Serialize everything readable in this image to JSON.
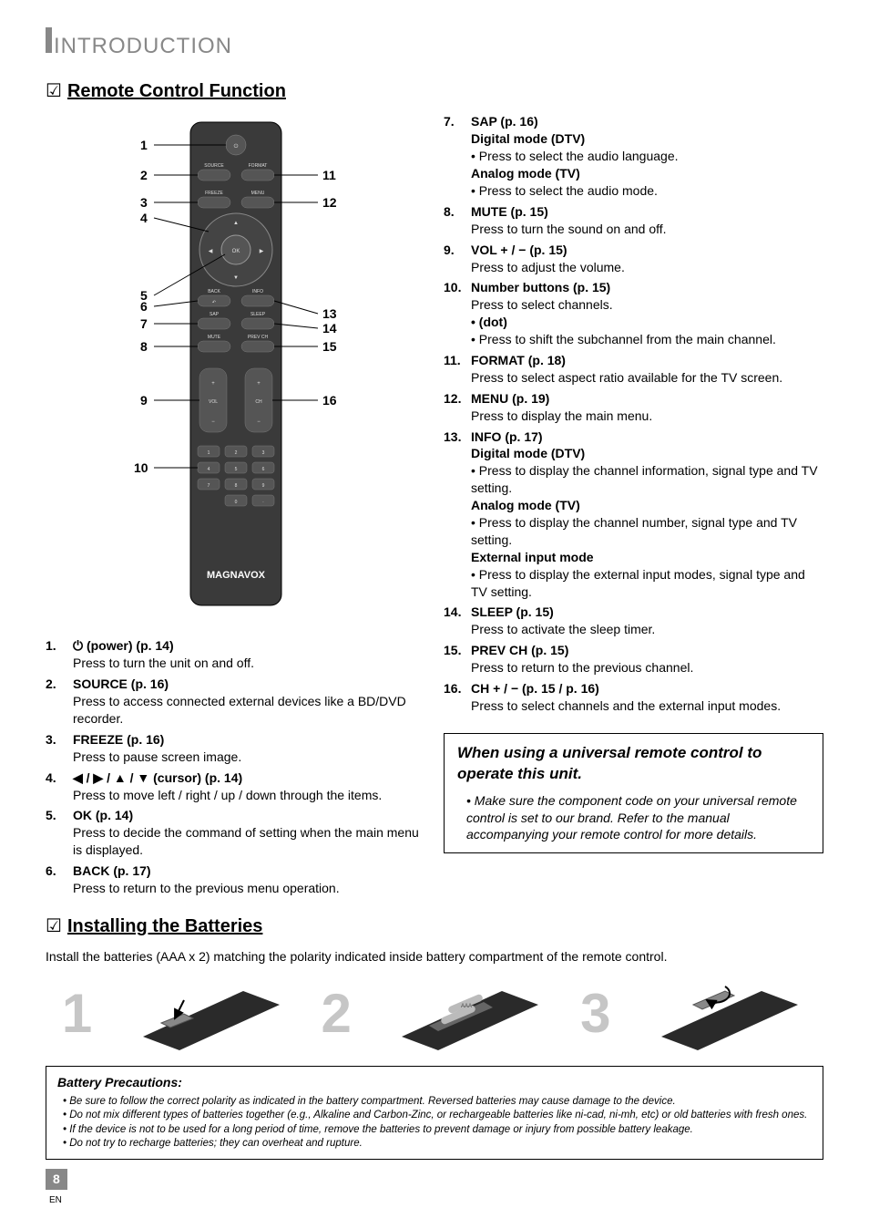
{
  "header": {
    "title_first_char": "I",
    "title_rest": "NTRODUCTION"
  },
  "section_remote": {
    "check": "☑",
    "title": "Remote Control Function"
  },
  "remote_labels": {
    "source": "SOURCE",
    "format": "FORMAT",
    "freeze": "FREEZE",
    "menu": "MENU",
    "ok": "OK",
    "back": "BACK",
    "info": "INFO",
    "sap": "SAP",
    "sleep": "SLEEP",
    "mute": "MUTE",
    "prevch": "PREV CH",
    "vol": "VOL",
    "ch": "CH",
    "brand": "MAGNAVOX",
    "nums": [
      "1",
      "2",
      "3",
      "4",
      "5",
      "6",
      "7",
      "8",
      "9",
      "0",
      "·"
    ]
  },
  "callouts_left": [
    "1",
    "2",
    "3",
    "4",
    "5",
    "6",
    "7",
    "8",
    "9",
    "10"
  ],
  "callouts_right": [
    "11",
    "12",
    "13",
    "14",
    "15",
    "16"
  ],
  "list_left": [
    {
      "n": "1.",
      "title": "⏻ (power) (p. 14)",
      "desc": [
        "Press to turn the unit on and off."
      ]
    },
    {
      "n": "2.",
      "title": "SOURCE (p. 16)",
      "desc": [
        "Press to access connected external devices like a BD/DVD recorder."
      ]
    },
    {
      "n": "3.",
      "title": "FREEZE (p. 16)",
      "desc": [
        "Press to pause screen image."
      ]
    },
    {
      "n": "4.",
      "title": "◀ / ▶ / ▲ / ▼ (cursor) (p. 14)",
      "desc": [
        "Press to move left / right / up / down through the items."
      ]
    },
    {
      "n": "5.",
      "title": "OK (p. 14)",
      "desc": [
        "Press to decide the command of setting when the main menu is displayed."
      ]
    },
    {
      "n": "6.",
      "title": "BACK (p. 17)",
      "desc": [
        "Press to return to the previous menu operation."
      ]
    }
  ],
  "list_right": [
    {
      "n": "7.",
      "title": "SAP (p. 16)",
      "blocks": [
        {
          "sub": "Digital mode (DTV)",
          "items": [
            "Press to select the audio language."
          ]
        },
        {
          "sub": "Analog mode (TV)",
          "items": [
            "Press to select the audio mode."
          ]
        }
      ]
    },
    {
      "n": "8.",
      "title": "MUTE (p. 15)",
      "desc": [
        "Press to turn the sound on and off."
      ]
    },
    {
      "n": "9.",
      "title": "VOL + / − (p. 15)",
      "desc": [
        "Press to adjust the volume."
      ]
    },
    {
      "n": "10.",
      "title": "Number buttons (p. 15)",
      "desc": [
        "Press to select channels."
      ],
      "sub_bullets": [
        {
          "sub": "• (dot)",
          "items": [
            "Press to shift the subchannel from the main channel."
          ]
        }
      ]
    },
    {
      "n": "11.",
      "title": "FORMAT (p. 18)",
      "desc": [
        "Press to select aspect ratio available for the TV screen."
      ]
    },
    {
      "n": "12.",
      "title": "MENU (p. 19)",
      "desc": [
        "Press to display the main menu."
      ]
    },
    {
      "n": "13.",
      "title": "INFO (p. 17)",
      "blocks": [
        {
          "sub": "Digital mode (DTV)",
          "items": [
            "Press to display the channel information, signal type and TV setting."
          ]
        },
        {
          "sub": "Analog mode (TV)",
          "items": [
            "Press to display the channel number, signal type and TV setting."
          ]
        },
        {
          "sub": "External input mode",
          "items": [
            "Press to display the external input modes, signal type and TV setting."
          ]
        }
      ]
    },
    {
      "n": "14.",
      "title": "SLEEP (p. 15)",
      "desc": [
        "Press to activate the sleep timer."
      ]
    },
    {
      "n": "15.",
      "title": "PREV CH (p. 15)",
      "desc": [
        "Press to return to the previous channel."
      ]
    },
    {
      "n": "16.",
      "title": "CH + / − (p. 15 / p. 16)",
      "desc": [
        "Press to select channels and the external input modes."
      ]
    }
  ],
  "universal_note": {
    "title": "When using a universal remote control to operate this unit.",
    "items": [
      "Make sure the component code on your universal remote control is set to our brand. Refer to the manual accompanying your remote control for more details."
    ]
  },
  "section_install": {
    "check": "☑",
    "title": "Installing the Batteries",
    "desc": "Install the batteries (AAA x 2) matching the polarity indicated inside battery compartment of the remote control.",
    "step_nums": [
      "1",
      "2",
      "3"
    ]
  },
  "precautions": {
    "title": "Battery Precautions:",
    "items": [
      "Be sure to follow the correct polarity as indicated in the battery compartment. Reversed batteries may cause damage to the device.",
      "Do not mix different types of batteries together (e.g., Alkaline and Carbon-Zinc, or rechargeable batteries like ni-cad, ni-mh, etc) or old batteries with fresh ones.",
      "If the device is not to be used for a long period of time, remove the batteries to prevent damage or injury from possible battery leakage.",
      "Do not try to recharge batteries; they can overheat and rupture."
    ]
  },
  "footer": {
    "page": "8",
    "lang": "EN"
  }
}
